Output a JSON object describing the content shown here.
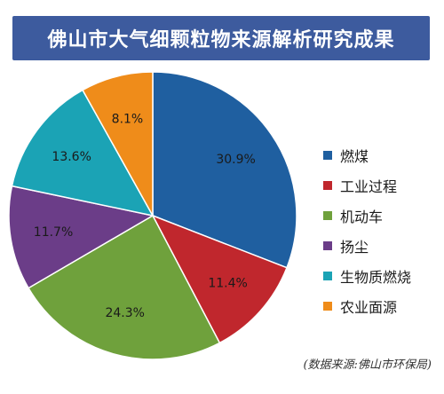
{
  "chart_data": {
    "type": "pie",
    "title": "佛山市大气细颗粒物来源解析研究成果",
    "categories": [
      "燃煤",
      "工业过程",
      "机动车",
      "扬尘",
      "生物质燃烧",
      "农业面源"
    ],
    "values": [
      30.9,
      11.4,
      24.3,
      11.7,
      13.6,
      8.1
    ],
    "labels": [
      "30.9%",
      "11.4%",
      "24.3%",
      "11.7%",
      "13.6%",
      "8.1%"
    ],
    "colors": [
      "#1f5fa0",
      "#c0272d",
      "#6fa13c",
      "#6b3d88",
      "#1ba3b5",
      "#ef8c1a"
    ],
    "legend_position": "right",
    "note": "(数据来源:佛山市环保局)"
  }
}
